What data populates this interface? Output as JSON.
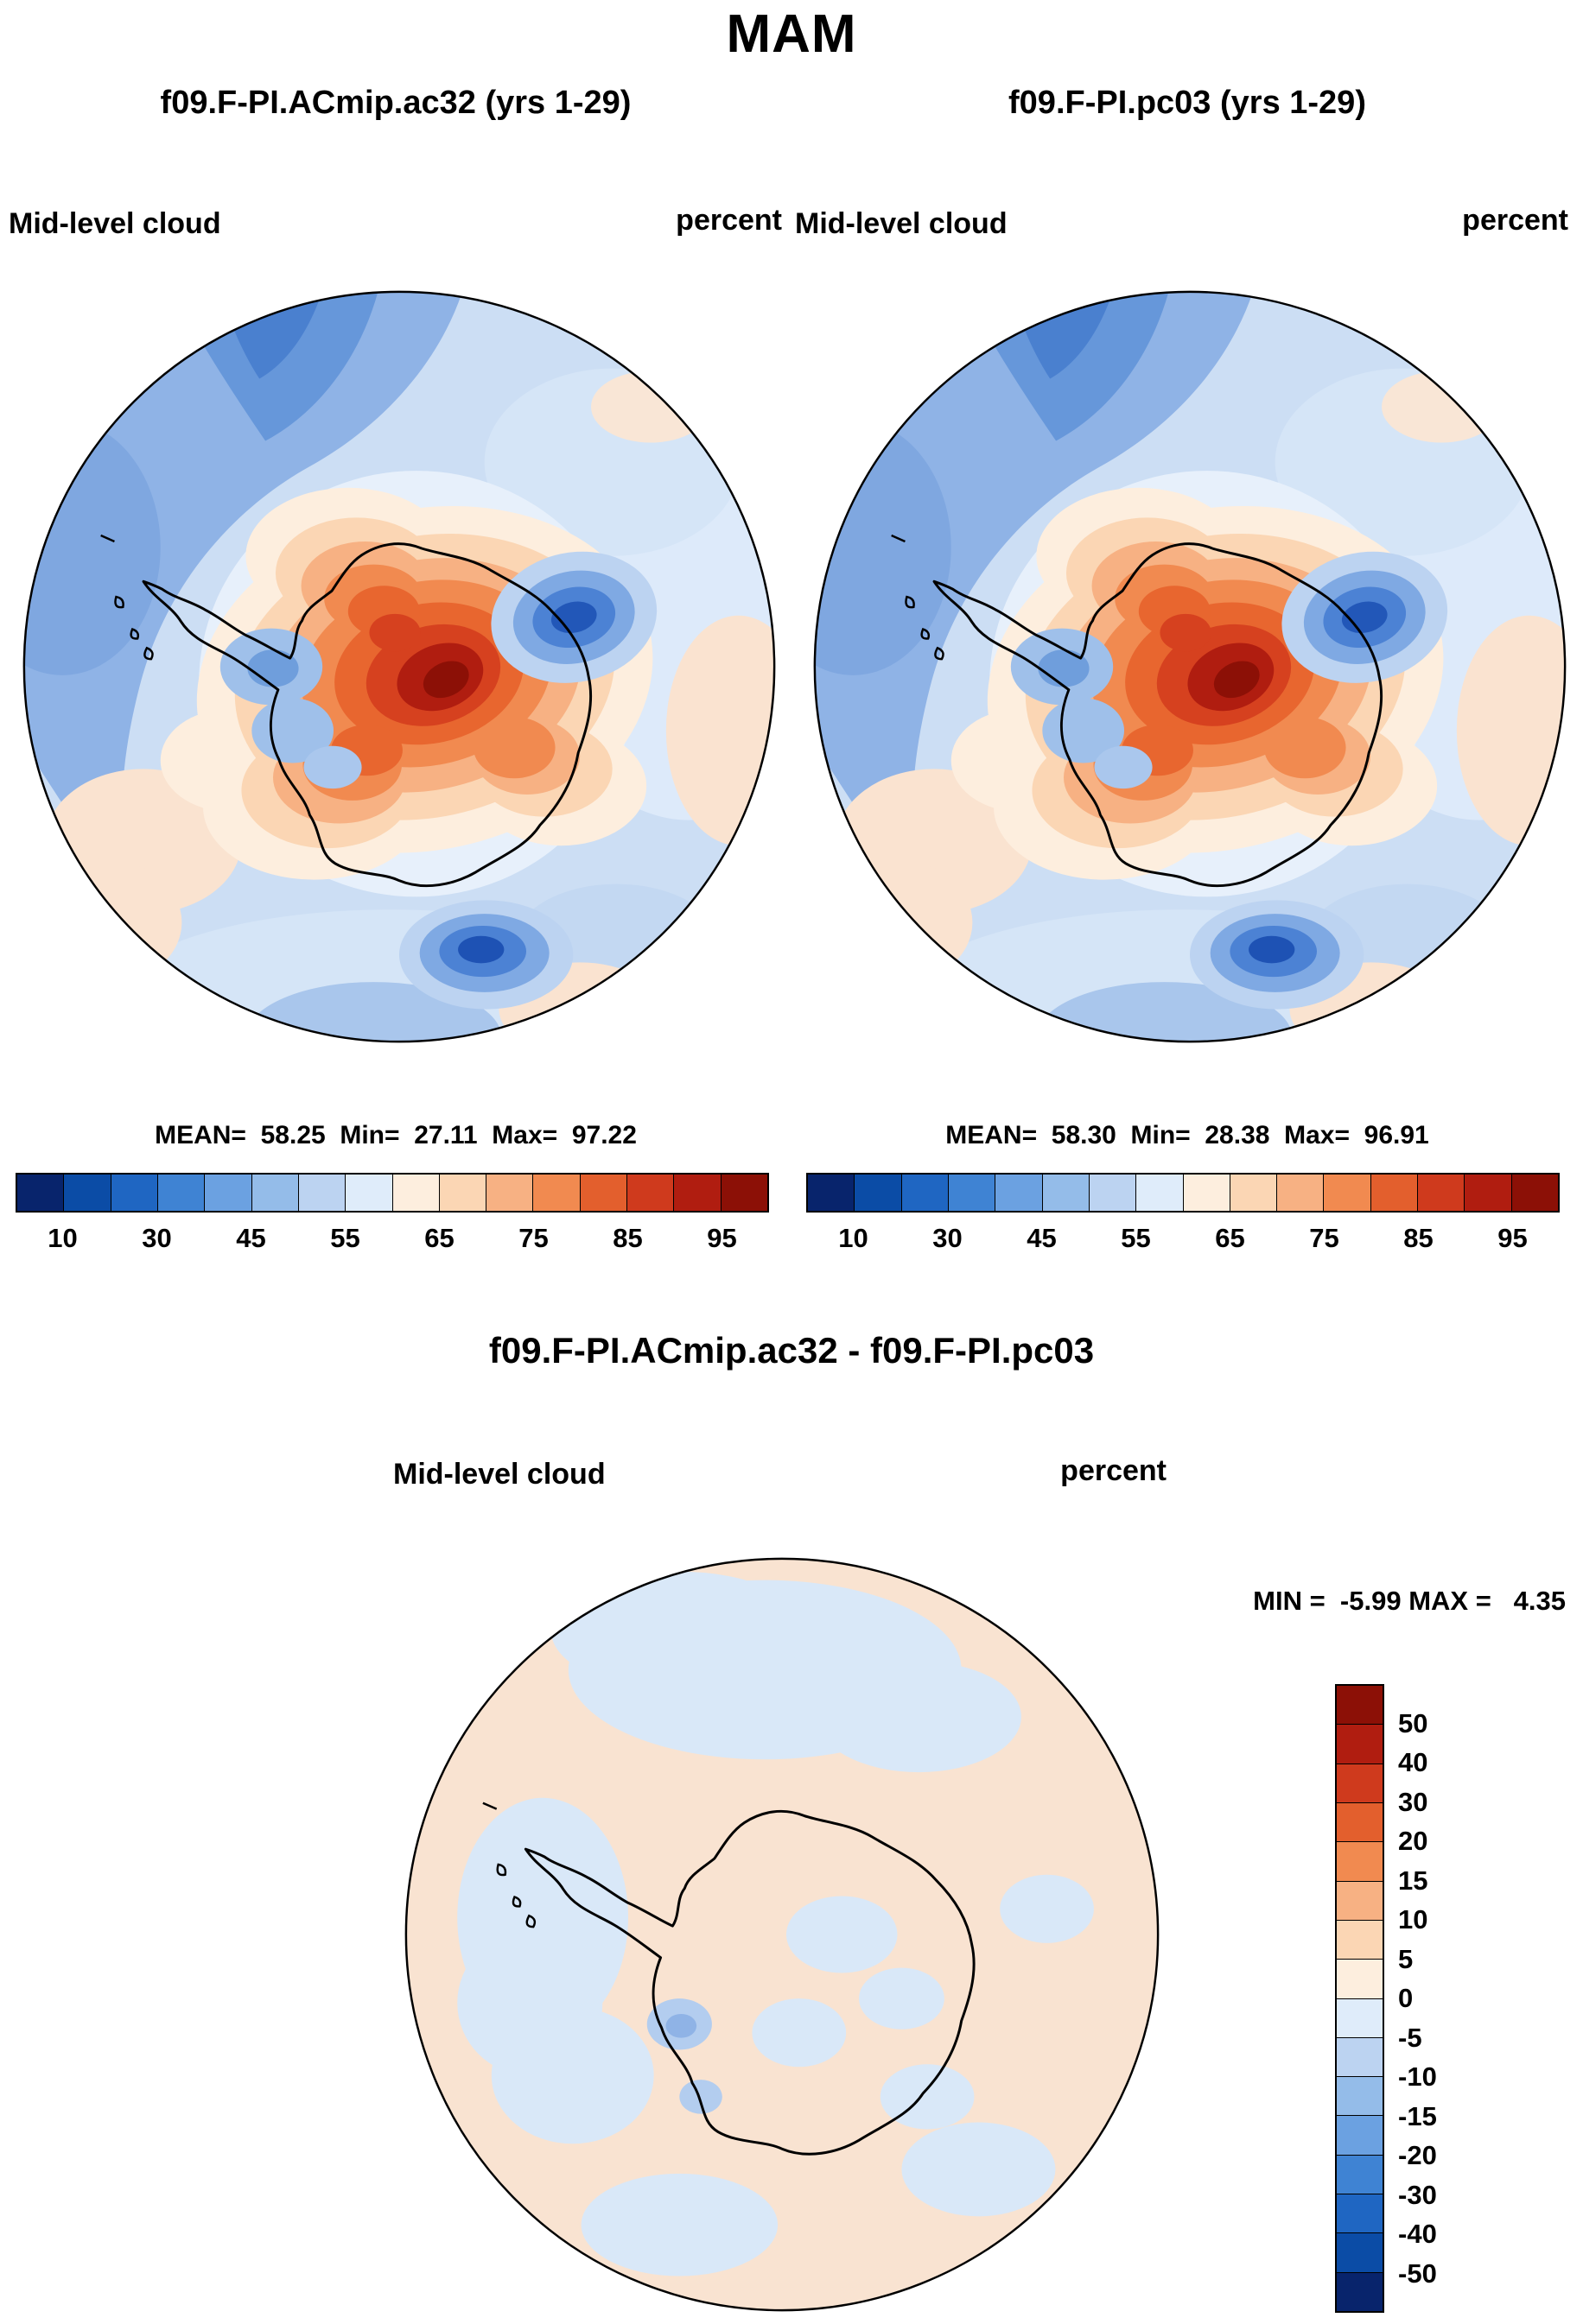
{
  "title": "MAM",
  "panels": [
    {
      "header": "f09.F-PI.ACmip.ac32 (yrs 1-29)",
      "var_label": "Mid-level cloud",
      "units": "percent",
      "stats": "MEAN=  58.25  Min=  27.11  Max=  97.22"
    },
    {
      "header": "f09.F-PI.pc03 (yrs 1-29)",
      "var_label": "Mid-level cloud",
      "units": "percent",
      "stats": "MEAN=  58.30  Min=  28.38  Max=  96.91"
    }
  ],
  "diff": {
    "title": "f09.F-PI.ACmip.ac32 - f09.F-PI.pc03",
    "var_label": "Mid-level cloud",
    "units": "percent",
    "minmax": "MIN =  -5.99 MAX =   4.35"
  },
  "colorbar": {
    "ticks": [
      "10",
      "30",
      "45",
      "55",
      "65",
      "75",
      "85",
      "95"
    ],
    "colors": [
      "#08246c",
      "#0b4ca6",
      "#1f66c2",
      "#3f83d3",
      "#6ba1e1",
      "#94bce9",
      "#bcd3f1",
      "#dfecfa",
      "#fdeede",
      "#fbd6b4",
      "#f7b183",
      "#f18a50",
      "#e35f2d",
      "#cf3a1d",
      "#b01d10",
      "#8c1006"
    ]
  },
  "diff_colorbar": {
    "ticks": [
      "50",
      "40",
      "30",
      "20",
      "15",
      "10",
      "5",
      "0",
      "-5",
      "-10",
      "-15",
      "-20",
      "-30",
      "-40",
      "-50"
    ],
    "colors": [
      "#8c1006",
      "#b01d10",
      "#cf3a1d",
      "#e35f2d",
      "#f18a50",
      "#f7b183",
      "#fbd6b4",
      "#fdeede",
      "#dfecfa",
      "#bcd3f1",
      "#94bce9",
      "#6ba1e1",
      "#3f83d3",
      "#1f66c2",
      "#0b4ca6",
      "#08246c"
    ]
  },
  "chart_data": {
    "type": "heatmap",
    "title": "MAM",
    "variable": "Mid-level cloud",
    "units": "percent",
    "projection": "south-polar-stereographic",
    "panels": [
      {
        "name": "f09.F-PI.ACmip.ac32",
        "years": "1-29",
        "mean": 58.25,
        "min": 27.11,
        "max": 97.22
      },
      {
        "name": "f09.F-PI.pc03",
        "years": "1-29",
        "mean": 58.3,
        "min": 28.38,
        "max": 96.91
      }
    ],
    "panel_colorbar_ticks": [
      10,
      30,
      45,
      55,
      65,
      75,
      85,
      95
    ],
    "difference": {
      "name": "f09.F-PI.ACmip.ac32 - f09.F-PI.pc03",
      "min": -5.99,
      "max": 4.35,
      "levels": [
        50,
        40,
        30,
        20,
        15,
        10,
        5,
        0,
        -5,
        -10,
        -15,
        -20,
        -30,
        -40,
        -50
      ]
    },
    "legend_position": "below-panels-and-right-of-difference",
    "grid": false
  }
}
